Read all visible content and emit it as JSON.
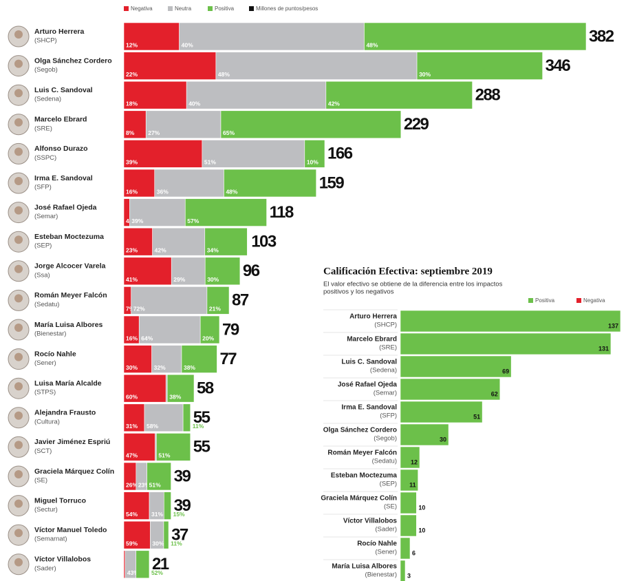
{
  "chart_data": [
    {
      "type": "stacked_bar",
      "categories": [
        "Arturo Herrera",
        "Olga Sánchez Cordero",
        "Luis C. Sandoval",
        "Marcelo Ebrard",
        "Alfonso Durazo",
        "Irma E. Sandoval",
        "José Rafael Ojeda",
        "Esteban Moctezuma",
        "Jorge Alcocer Varela",
        "Román Meyer Falcón",
        "María Luisa Albores",
        "Rocío Nahle",
        "Luisa María Alcalde",
        "Alejandra Frausto",
        "Javier Jiménez Espriú",
        "Graciela Márquez Colín",
        "Miguel Torruco",
        "Víctor Manuel Toledo",
        "Víctor Villalobos"
      ],
      "sublabels": [
        "(SHCP)",
        "(Segob)",
        "(Sedena)",
        "(SRE)",
        "(SSPC)",
        "(SFP)",
        "(Semar)",
        "(SEP)",
        "(Ssa)",
        "(Sedatu)",
        "(Bienestar)",
        "(Sener)",
        "(STPS)",
        "(Cultura)",
        "(SCT)",
        "(SE)",
        "(Sectur)",
        "(Semarnat)",
        "(Sader)"
      ],
      "series": [
        {
          "name": "Negativa",
          "color": "#e3202b",
          "values": [
            12,
            22,
            18,
            8,
            39,
            16,
            4,
            23,
            41,
            7,
            16,
            30,
            60,
            31,
            47,
            26,
            54,
            59,
            5
          ],
          "value_labels": [
            "12%",
            "22%",
            "18%",
            "8%",
            "39%",
            "16%",
            "4%",
            "23%",
            "41%",
            "7%",
            "16%",
            "30%",
            "60%",
            "31%",
            "47%",
            "26%",
            "54%",
            "59%",
            "5%"
          ]
        },
        {
          "name": "Neutra",
          "color": "#bdbec1",
          "values": [
            40,
            48,
            40,
            27,
            51,
            36,
            39,
            42,
            29,
            72,
            64,
            32,
            2,
            58,
            2,
            23,
            31,
            30,
            43
          ],
          "value_labels": [
            "40%",
            "48%",
            "40%",
            "27%",
            "51%",
            "36%",
            "39%",
            "42%",
            "29%",
            "72%",
            "64%",
            "32%",
            "2%",
            "58%",
            "2%",
            "23%",
            "31%",
            "30%",
            "43%"
          ]
        },
        {
          "name": "Positiva",
          "color": "#6cc04a",
          "values": [
            48,
            30,
            42,
            65,
            10,
            48,
            57,
            34,
            30,
            21,
            20,
            38,
            38,
            11,
            51,
            51,
            15,
            11,
            52
          ],
          "value_labels": [
            "48%",
            "30%",
            "42%",
            "65%",
            "10%",
            "48%",
            "57%",
            "34%",
            "30%",
            "21%",
            "20%",
            "38%",
            "38%",
            "11%",
            "51%",
            "51%",
            "15%",
            "11%",
            "52%"
          ]
        }
      ],
      "totals": {
        "name": "Millones de puntos/pesos",
        "color": "#111111",
        "values": [
          382,
          346,
          288,
          229,
          166,
          159,
          118,
          103,
          96,
          87,
          79,
          77,
          58,
          55,
          55,
          39,
          39,
          37,
          21
        ]
      }
    },
    {
      "type": "bar",
      "title": "Calificación Efectiva: septiembre 2019",
      "subtitle": [
        "El valor efectivo se obtiene de la diferencia entre los impactos",
        "positivos y los negativos"
      ],
      "legend": [
        {
          "name": "Positiva",
          "color": "#6cc04a"
        },
        {
          "name": "Negativa",
          "color": "#e3202b"
        }
      ],
      "categories": [
        "Arturo Herrera",
        "Marcelo Ebrard",
        "Luis C. Sandoval",
        "José Rafael Ojeda",
        "Irma E. Sandoval",
        "Olga Sánchez Cordero",
        "Román Meyer Falcón",
        "Esteban Moctezuma",
        "Graciela Márquez Colín",
        "Víctor Villalobos",
        "Rocío Nahle",
        "María Luisa Albores"
      ],
      "sublabels": [
        "(SHCP)",
        "(SRE)",
        "(Sedena)",
        "(Semar)",
        "(SFP)",
        "(Segob)",
        "(Sedatu)",
        "(SEP)",
        "(SE)",
        "(Sader)",
        "(Sener)",
        "(Bienestar)"
      ],
      "values": [
        137,
        131,
        69,
        62,
        51,
        30,
        12,
        11,
        10,
        10,
        6,
        3
      ],
      "color": "#6cc04a"
    }
  ]
}
